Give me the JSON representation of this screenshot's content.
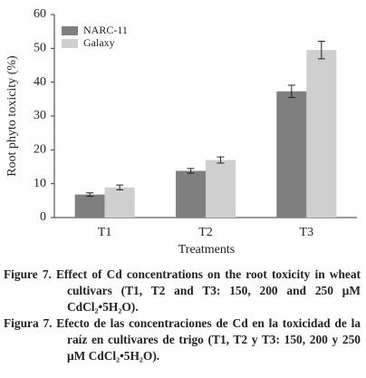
{
  "chart_data": {
    "type": "bar",
    "x_label": "Treatments",
    "y_label": "Root phyto toxicity (%)",
    "categories": [
      "T1",
      "T2",
      "T3"
    ],
    "series": [
      {
        "name": "NARC-11",
        "color": "#7f7f7f",
        "values": [
          6.8,
          13.8,
          37.3
        ],
        "errors": [
          0.5,
          0.7,
          1.8
        ]
      },
      {
        "name": "Galaxy",
        "color": "#cfcfcf",
        "values": [
          8.9,
          17,
          49.5
        ],
        "errors": [
          0.7,
          0.9,
          2.6
        ]
      }
    ],
    "ylim": [
      0,
      60
    ],
    "yticks": [
      0,
      10,
      20,
      30,
      40,
      50,
      60
    ],
    "legend": "upper-left"
  },
  "captions": [
    "Figure 7. Effect of Cd concentrations on the root toxicity in wheat cultivars (T1, T2 and T3: 150, 200 and 250 μM CdCl₂•5H₂O).",
    "Figura 7. Efecto de las concentraciones de Cd en la toxicidad de la raíz en cultivares de trigo (T1, T2 y T3: 150, 200 y 250 μM CdCl₂•5H₂O)."
  ]
}
